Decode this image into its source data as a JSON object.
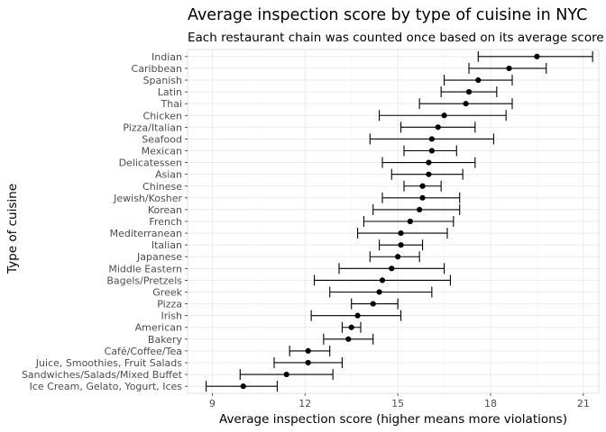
{
  "chart_data": {
    "type": "scatter",
    "title": "Average inspection score by type of cuisine in NYC",
    "subtitle": "Each restaurant chain was counted once based on its average score",
    "xlabel": "Average inspection score (higher means more violations)",
    "ylabel": "Type of cuisine",
    "xlim": [
      8.2,
      21.5
    ],
    "xticks": [
      9,
      12,
      15,
      18,
      21
    ],
    "grid": true,
    "series": [
      {
        "cuisine": "Indian",
        "mean": 19.5,
        "low": 17.6,
        "high": 21.3
      },
      {
        "cuisine": "Caribbean",
        "mean": 18.6,
        "low": 17.3,
        "high": 19.8
      },
      {
        "cuisine": "Spanish",
        "mean": 17.6,
        "low": 16.5,
        "high": 18.7
      },
      {
        "cuisine": "Latin",
        "mean": 17.3,
        "low": 16.4,
        "high": 18.2
      },
      {
        "cuisine": "Thai",
        "mean": 17.2,
        "low": 15.7,
        "high": 18.7
      },
      {
        "cuisine": "Chicken",
        "mean": 16.5,
        "low": 14.4,
        "high": 18.5
      },
      {
        "cuisine": "Pizza/Italian",
        "mean": 16.3,
        "low": 15.1,
        "high": 17.5
      },
      {
        "cuisine": "Seafood",
        "mean": 16.1,
        "low": 14.1,
        "high": 18.1
      },
      {
        "cuisine": "Mexican",
        "mean": 16.1,
        "low": 15.2,
        "high": 16.9
      },
      {
        "cuisine": "Delicatessen",
        "mean": 16.0,
        "low": 14.5,
        "high": 17.5
      },
      {
        "cuisine": "Asian",
        "mean": 16.0,
        "low": 14.8,
        "high": 17.1
      },
      {
        "cuisine": "Chinese",
        "mean": 15.8,
        "low": 15.2,
        "high": 16.4
      },
      {
        "cuisine": "Jewish/Kosher",
        "mean": 15.8,
        "low": 14.5,
        "high": 17.0
      },
      {
        "cuisine": "Korean",
        "mean": 15.7,
        "low": 14.2,
        "high": 17.0
      },
      {
        "cuisine": "French",
        "mean": 15.4,
        "low": 13.9,
        "high": 16.8
      },
      {
        "cuisine": "Mediterranean",
        "mean": 15.1,
        "low": 13.7,
        "high": 16.6
      },
      {
        "cuisine": "Italian",
        "mean": 15.1,
        "low": 14.4,
        "high": 15.8
      },
      {
        "cuisine": "Japanese",
        "mean": 15.0,
        "low": 14.1,
        "high": 15.7
      },
      {
        "cuisine": "Middle Eastern",
        "mean": 14.8,
        "low": 13.1,
        "high": 16.5
      },
      {
        "cuisine": "Bagels/Pretzels",
        "mean": 14.5,
        "low": 12.3,
        "high": 16.7
      },
      {
        "cuisine": "Greek",
        "mean": 14.4,
        "low": 12.8,
        "high": 16.1
      },
      {
        "cuisine": "Pizza",
        "mean": 14.2,
        "low": 13.5,
        "high": 15.0
      },
      {
        "cuisine": "Irish",
        "mean": 13.7,
        "low": 12.2,
        "high": 15.1
      },
      {
        "cuisine": "American",
        "mean": 13.5,
        "low": 13.2,
        "high": 13.8
      },
      {
        "cuisine": "Bakery",
        "mean": 13.4,
        "low": 12.6,
        "high": 14.2
      },
      {
        "cuisine": "Café/Coffee/Tea",
        "mean": 12.1,
        "low": 11.5,
        "high": 12.8
      },
      {
        "cuisine": "Juice, Smoothies, Fruit Salads",
        "mean": 12.1,
        "low": 11.0,
        "high": 13.2
      },
      {
        "cuisine": "Sandwiches/Salads/Mixed Buffet",
        "mean": 11.4,
        "low": 9.9,
        "high": 12.9
      },
      {
        "cuisine": "Ice Cream, Gelato, Yogurt, Ices",
        "mean": 10.0,
        "low": 8.8,
        "high": 11.1
      }
    ]
  }
}
